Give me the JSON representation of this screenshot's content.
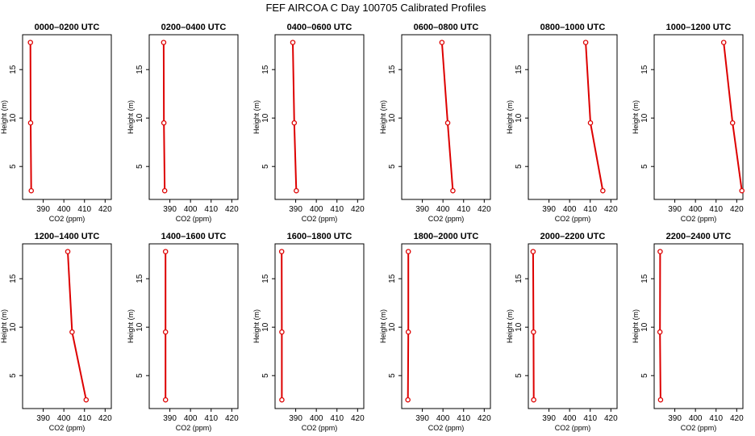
{
  "figure_title": "FEF AIRCOA C  Day 100705  Calibrated Profiles",
  "colors": {
    "profile": "#dd0000",
    "axis": "#000000",
    "background": "#ffffff"
  },
  "chart_data": {
    "type": "line",
    "layout": "2 rows x 6 panels, small multiples",
    "xlabel": "CO2 (ppm)",
    "ylabel": "Height (m)",
    "xlim": [
      380,
      423
    ],
    "ylim": [
      1.6,
      18.6
    ],
    "xticks": [
      390,
      400,
      410,
      420
    ],
    "yticks": [
      5,
      10,
      15
    ],
    "grid": false,
    "heights": [
      2.5,
      9.5,
      17.8
    ],
    "panels": [
      {
        "title": "0000–0200 UTC",
        "co2": [
          384.2,
          383.9,
          383.8
        ]
      },
      {
        "title": "0200–0400 UTC",
        "co2": [
          387.5,
          387.1,
          387.0
        ]
      },
      {
        "title": "0400–0600 UTC",
        "co2": [
          390.3,
          389.3,
          388.6
        ]
      },
      {
        "title": "0600–0800 UTC",
        "co2": [
          404.8,
          402.3,
          399.5
        ]
      },
      {
        "title": "0800–1000 UTC",
        "co2": [
          416.1,
          410.1,
          407.8
        ]
      },
      {
        "title": "1000–1200 UTC",
        "co2": [
          422.5,
          418.0,
          413.7
        ]
      },
      {
        "title": "1200–1400 UTC",
        "co2": [
          410.8,
          404.0,
          401.9
        ]
      },
      {
        "title": "1400–1600 UTC",
        "co2": [
          387.9,
          387.9,
          387.9
        ]
      },
      {
        "title": "1600–1800 UTC",
        "co2": [
          383.3,
          383.3,
          383.2
        ]
      },
      {
        "title": "1800–2000 UTC",
        "co2": [
          383.0,
          383.2,
          383.2
        ]
      },
      {
        "title": "2000–2200 UTC",
        "co2": [
          382.6,
          382.5,
          382.3
        ]
      },
      {
        "title": "2200–2400 UTC",
        "co2": [
          383.1,
          382.8,
          382.9
        ]
      }
    ]
  }
}
